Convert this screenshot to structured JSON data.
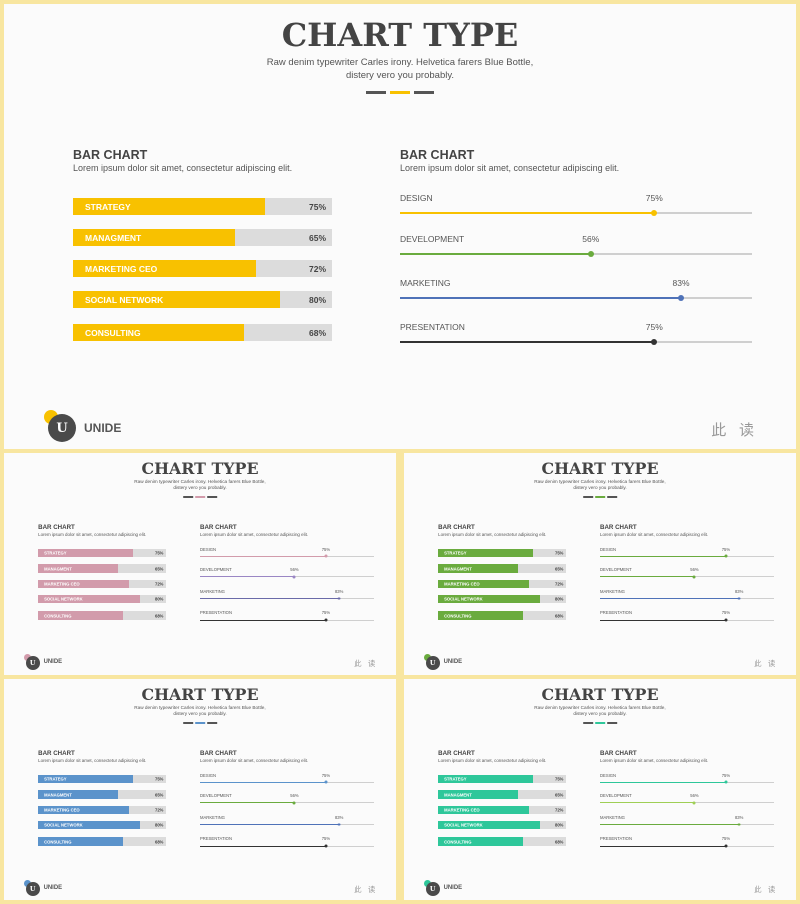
{
  "slide": {
    "title": "CHART TYPE",
    "subtitle": "Raw denim typewriter Carles irony. Helvetica farers Blue Bottle,\ndistery vero you probably.",
    "left_heading": "BAR CHART",
    "left_desc": "Lorem ipsum dolor sit amet, consectetur adipiscing elit.",
    "right_heading": "BAR CHART",
    "right_desc": "Lorem ipsum dolor sit amet, consectetur adipiscing elit.",
    "logo_letter": "U",
    "logo_text": "UNIDE",
    "footer_cn": "此 读"
  },
  "bars": [
    {
      "label": "STRATEGY",
      "value": 75,
      "value_text": "75%"
    },
    {
      "label": "MANAGMENT",
      "value": 65,
      "value_text": "65%"
    },
    {
      "label": "MARKETING CEO",
      "value": 72,
      "value_text": "72%"
    },
    {
      "label": "SOCIAL NETWORK",
      "value": 80,
      "value_text": "80%"
    },
    {
      "label": "CONSULTING",
      "value": 68,
      "value_text": "68%"
    }
  ],
  "lines": [
    {
      "label": "DESIGN",
      "value": 75,
      "value_text": "75%"
    },
    {
      "label": "DEVELOPMENT",
      "value": 56,
      "value_text": "56%"
    },
    {
      "label": "MARKETING",
      "value": 83,
      "value_text": "83%"
    },
    {
      "label": "PRESENTATION",
      "value": 75,
      "value_text": "75%"
    }
  ],
  "themes": [
    {
      "name": "yellow",
      "bar": "#f8c100",
      "lines": [
        "#f8c100",
        "#6aab3e",
        "#4f72b8",
        "#333333"
      ],
      "deco": [
        "#555555",
        "#f8c100",
        "#555555"
      ],
      "logo_dot": "#f8c100"
    },
    {
      "name": "pink",
      "bar": "#d29bab",
      "lines": [
        "#d29bab",
        "#9a86c4",
        "#6a6aa8",
        "#333333"
      ],
      "deco": [
        "#555555",
        "#d29bab",
        "#555555"
      ],
      "logo_dot": "#d29bab"
    },
    {
      "name": "green",
      "bar": "#6aab3e",
      "lines": [
        "#6aab3e",
        "#6aab3e",
        "#4f72b8",
        "#333333"
      ],
      "deco": [
        "#555555",
        "#6aab3e",
        "#555555"
      ],
      "logo_dot": "#6aab3e"
    },
    {
      "name": "blue",
      "bar": "#5b93cb",
      "lines": [
        "#5b93cb",
        "#6aab3e",
        "#4f72b8",
        "#333333"
      ],
      "deco": [
        "#555555",
        "#5b93cb",
        "#555555"
      ],
      "logo_dot": "#5b93cb"
    },
    {
      "name": "teal",
      "bar": "#2ec79a",
      "lines": [
        "#2ec79a",
        "#9fcf55",
        "#6aab3e",
        "#333333"
      ],
      "deco": [
        "#555555",
        "#2ec79a",
        "#555555"
      ],
      "logo_dot": "#2ec79a"
    }
  ]
}
